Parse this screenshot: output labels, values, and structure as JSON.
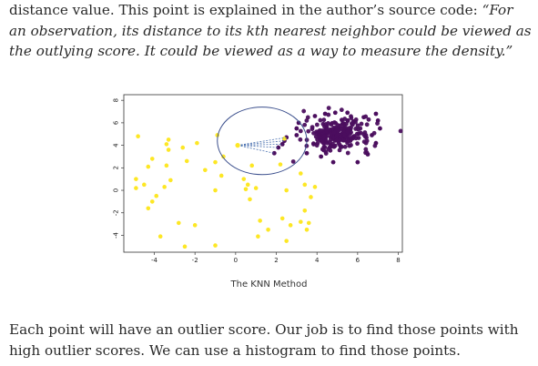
{
  "article": {
    "para1_prefix": "distance value. This point is explained in the author’s source code: ",
    "para1_quote": "“For an observation, its distance to its kth nearest neighbor could be viewed as the outlying score. It could be viewed as a way to measure the density.”",
    "para2": "Each point will have an outlier score. Our job is to find those points with high outlier scores. We can use a histogram to find those points."
  },
  "figure": {
    "caption": "The KNN Method",
    "colors": {
      "inlier": "#4b0e5e",
      "outlier": "#fde725",
      "circle": "#3a4e8c",
      "edge": "#4c72b0"
    }
  },
  "chart_data": {
    "type": "scatter",
    "title": "",
    "caption": "The KNN Method",
    "xlim": [
      -5.5,
      8.2
    ],
    "ylim": [
      -5.5,
      8.5
    ],
    "xticks": [
      -4,
      -2,
      0,
      2,
      4,
      6,
      8
    ],
    "yticks": [
      -4,
      -2,
      0,
      2,
      4,
      6,
      8
    ],
    "xtick_labels": [
      "-4",
      "-2",
      "0",
      "2",
      "4",
      "6",
      "8"
    ],
    "ytick_labels": [
      "-4",
      "-2",
      "0",
      "2",
      "4",
      "6",
      "8"
    ],
    "neighborhood_circle": {
      "center": [
        1.3,
        4.4
      ],
      "radius_x": 2.2,
      "radius_y": 3.0
    },
    "query_point": [
      0.1,
      4.0
    ],
    "neighbor_lines_to": [
      [
        2.5,
        4.7
      ],
      [
        2.4,
        4.4
      ],
      [
        2.3,
        4.1
      ],
      [
        2.1,
        3.8
      ],
      [
        1.9,
        3.3
      ]
    ],
    "series": [
      {
        "name": "outliers",
        "color": "#fde725",
        "points": [
          [
            -4.8,
            4.8
          ],
          [
            -4.1,
            2.8
          ],
          [
            -4.3,
            2.1
          ],
          [
            -3.3,
            4.5
          ],
          [
            -3.4,
            4.1
          ],
          [
            -3.3,
            3.6
          ],
          [
            -2.6,
            3.8
          ],
          [
            -2.4,
            2.6
          ],
          [
            -3.4,
            2.2
          ],
          [
            -1.9,
            4.2
          ],
          [
            -4.9,
            1.0
          ],
          [
            -4.5,
            0.5
          ],
          [
            -4.9,
            0.2
          ],
          [
            -3.2,
            0.9
          ],
          [
            -3.9,
            -0.5
          ],
          [
            -4.1,
            -1.0
          ],
          [
            -4.3,
            -1.6
          ],
          [
            -3.5,
            0.3
          ],
          [
            -2.8,
            -2.9
          ],
          [
            -2.0,
            -3.1
          ],
          [
            -1.5,
            1.8
          ],
          [
            -1.0,
            2.5
          ],
          [
            -1.0,
            0.0
          ],
          [
            -0.9,
            4.9
          ],
          [
            -0.6,
            3.0
          ],
          [
            -0.7,
            1.3
          ],
          [
            0.5,
            0.1
          ],
          [
            0.6,
            0.5
          ],
          [
            0.7,
            -0.8
          ],
          [
            0.8,
            2.2
          ],
          [
            0.4,
            1.0
          ],
          [
            1.0,
            0.2
          ],
          [
            2.2,
            2.3
          ],
          [
            1.2,
            -2.7
          ],
          [
            1.6,
            -3.5
          ],
          [
            1.1,
            -4.1
          ],
          [
            -3.7,
            -4.1
          ],
          [
            -2.5,
            -5.0
          ],
          [
            -1.0,
            -4.9
          ],
          [
            2.3,
            -2.5
          ],
          [
            2.7,
            -3.1
          ],
          [
            2.5,
            -4.5
          ],
          [
            3.2,
            -2.8
          ],
          [
            3.6,
            -2.9
          ],
          [
            3.2,
            1.5
          ],
          [
            2.5,
            0.0
          ],
          [
            3.4,
            0.5
          ],
          [
            3.7,
            -0.6
          ],
          [
            3.9,
            0.3
          ],
          [
            3.4,
            -1.8
          ],
          [
            3.5,
            -3.5
          ],
          [
            2.4,
            4.6
          ],
          [
            0.1,
            4.0
          ]
        ]
      },
      {
        "name": "inliers",
        "color": "#4b0e5e",
        "cluster_center": [
          5.0,
          5.0
        ],
        "cluster_count": 260,
        "cluster_spread": [
          0.8,
          0.7
        ],
        "extra_points": [
          [
            2.5,
            4.7
          ],
          [
            2.4,
            4.4
          ],
          [
            2.3,
            4.1
          ],
          [
            2.1,
            3.8
          ],
          [
            1.9,
            3.3
          ],
          [
            3.0,
            4.9
          ],
          [
            3.0,
            5.5
          ],
          [
            3.1,
            6.0
          ],
          [
            6.7,
            4.9
          ],
          [
            7.1,
            5.5
          ],
          [
            7.0,
            6.2
          ],
          [
            6.5,
            3.2
          ],
          [
            6.0,
            2.5
          ],
          [
            4.2,
            3.0
          ],
          [
            3.5,
            3.3
          ],
          [
            4.9,
            6.9
          ],
          [
            4.4,
            6.8
          ],
          [
            5.5,
            6.9
          ],
          [
            3.9,
            6.6
          ],
          [
            6.3,
            6.5
          ],
          [
            6.9,
            6.8
          ],
          [
            6.9,
            4.2
          ],
          [
            4.8,
            2.5
          ]
        ]
      }
    ]
  }
}
